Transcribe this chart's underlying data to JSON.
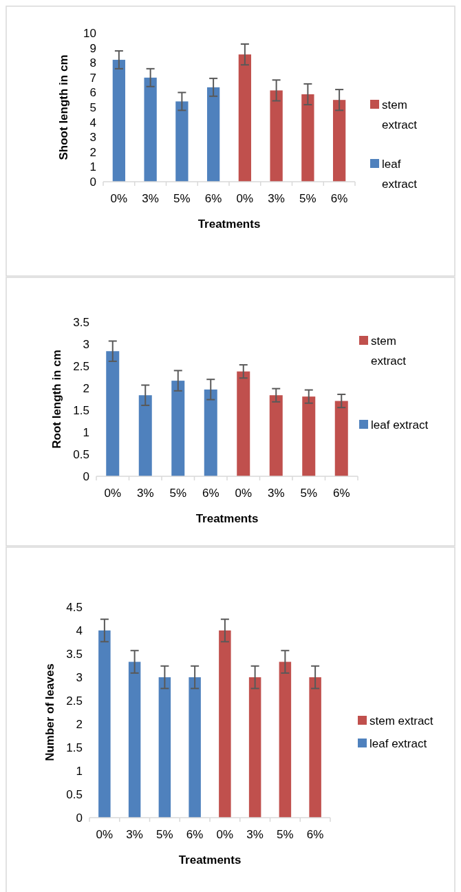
{
  "chart_data": [
    {
      "type": "bar",
      "categories": [
        "0%",
        "3%",
        "5%",
        "6%",
        "0%",
        "3%",
        "5%",
        "6%"
      ],
      "xlabel": "Treatments",
      "ylabel": "Shoot length in cm",
      "ylim": [
        0,
        10
      ],
      "yticks": [
        0,
        1,
        2,
        3,
        4,
        5,
        6,
        7,
        8,
        9,
        10
      ],
      "legend": "right",
      "series": [
        {
          "name": "stem extract",
          "color": "#c0504d",
          "values": [
            null,
            null,
            null,
            null,
            8.56,
            6.14,
            5.88,
            5.5
          ],
          "errors": [
            null,
            null,
            null,
            null,
            0.7,
            0.7,
            0.7,
            0.7
          ]
        },
        {
          "name": "leaf extract",
          "color": "#4f81bd",
          "values": [
            8.2,
            7.0,
            5.4,
            6.35,
            null,
            null,
            null,
            null
          ],
          "errors": [
            0.6,
            0.6,
            0.6,
            0.6,
            null,
            null,
            null,
            null
          ]
        }
      ]
    },
    {
      "type": "bar",
      "categories": [
        "0%",
        "3%",
        "5%",
        "6%",
        "0%",
        "3%",
        "5%",
        "6%"
      ],
      "xlabel": "Treatments",
      "ylabel": "Root length in cm",
      "ylim": [
        0,
        3.5
      ],
      "yticks": [
        0,
        0.5,
        1,
        1.5,
        2,
        2.5,
        3,
        3.5
      ],
      "legend": "right",
      "series": [
        {
          "name": "stem extract",
          "color": "#c0504d",
          "values": [
            null,
            null,
            null,
            null,
            2.38,
            1.84,
            1.81,
            1.71
          ],
          "errors": [
            null,
            null,
            null,
            null,
            0.15,
            0.15,
            0.15,
            0.15
          ]
        },
        {
          "name": "leaf extract",
          "color": "#4f81bd",
          "values": [
            2.84,
            1.84,
            2.17,
            1.97,
            null,
            null,
            null,
            null
          ],
          "errors": [
            0.23,
            0.23,
            0.23,
            0.23,
            null,
            null,
            null,
            null
          ]
        }
      ]
    },
    {
      "type": "bar",
      "categories": [
        "0%",
        "3%",
        "5%",
        "6%",
        "0%",
        "3%",
        "5%",
        "6%"
      ],
      "xlabel": "Treatments",
      "ylabel": "Number of leaves",
      "ylim": [
        0,
        4.5
      ],
      "yticks": [
        0,
        0.5,
        1,
        1.5,
        2,
        2.5,
        3,
        3.5,
        4,
        4.5
      ],
      "legend": "right",
      "series": [
        {
          "name": "stem extract",
          "color": "#c0504d",
          "values": [
            null,
            null,
            null,
            null,
            4,
            3,
            3.33,
            3
          ],
          "errors": [
            null,
            null,
            null,
            null,
            0.24,
            0.24,
            0.24,
            0.24
          ]
        },
        {
          "name": "leaf extract",
          "color": "#4f81bd",
          "values": [
            4,
            3.33,
            3,
            3,
            null,
            null,
            null,
            null
          ],
          "errors": [
            0.24,
            0.24,
            0.24,
            0.24,
            null,
            null,
            null,
            null
          ]
        }
      ]
    }
  ]
}
